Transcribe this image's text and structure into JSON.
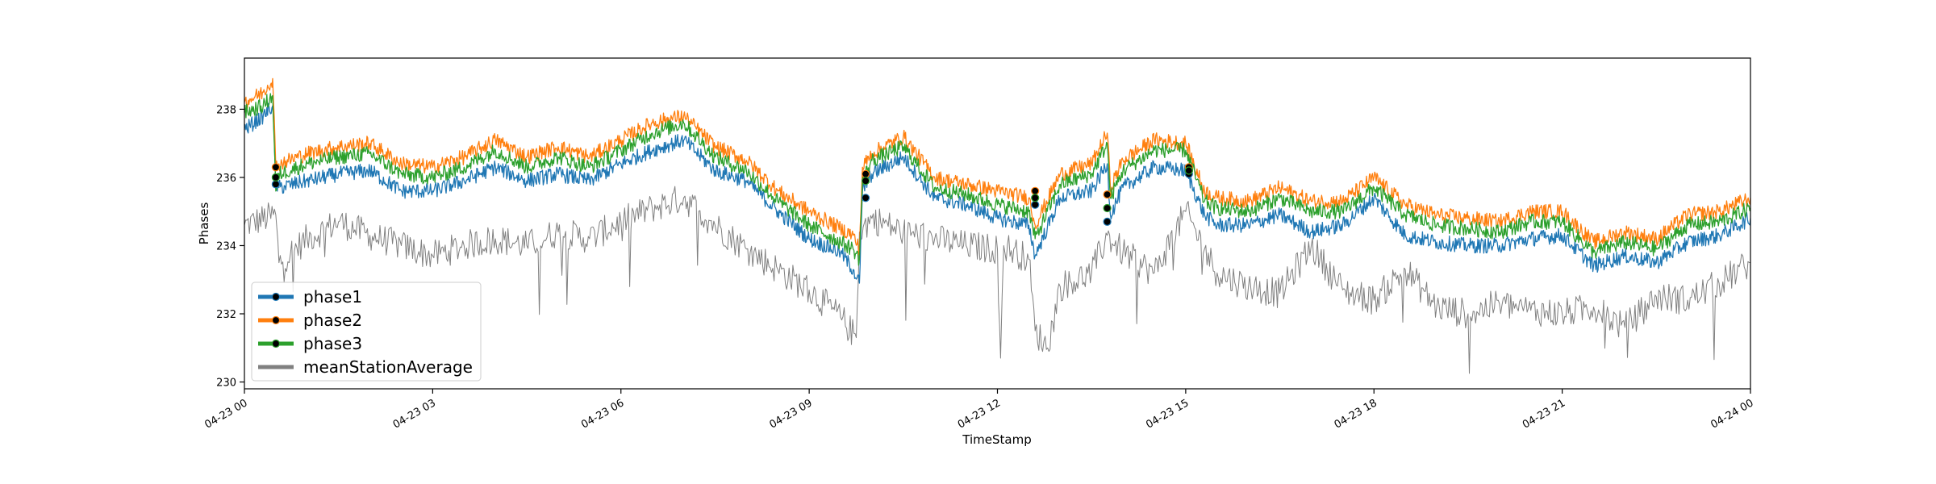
{
  "chart_data": {
    "type": "line",
    "title": "",
    "xlabel": "TimeStamp",
    "ylabel": "Phases",
    "xlim": [
      "2019-04-23 00:00",
      "2019-04-24 00:00"
    ],
    "ylim": [
      229.8,
      239.5
    ],
    "x_ticks": [
      {
        "t": 0,
        "label": "04-23 00"
      },
      {
        "t": 3,
        "label": "04-23 03"
      },
      {
        "t": 6,
        "label": "04-23 06"
      },
      {
        "t": 9,
        "label": "04-23 09"
      },
      {
        "t": 12,
        "label": "04-23 12"
      },
      {
        "t": 15,
        "label": "04-23 15"
      },
      {
        "t": 18,
        "label": "04-23 18"
      },
      {
        "t": 21,
        "label": "04-23 21"
      },
      {
        "t": 24,
        "label": "04-24 00"
      }
    ],
    "y_ticks": [
      230,
      232,
      234,
      236,
      238
    ],
    "grid": false,
    "legend": {
      "placement": "lower-left"
    },
    "series": [
      {
        "name": "phase1",
        "color": "#1f77b4",
        "x": [
          0,
          0.3,
          0.45,
          0.5,
          0.55,
          1,
          1.5,
          2,
          2.5,
          3,
          3.5,
          4,
          4.5,
          5,
          5.5,
          6,
          6.5,
          7,
          7.5,
          8,
          8.5,
          9,
          9.5,
          9.7,
          9.8,
          9.85,
          10,
          10.5,
          11,
          11.5,
          12,
          12.5,
          12.6,
          13,
          13.5,
          13.75,
          13.8,
          14,
          14.5,
          15,
          15.3,
          15.5,
          16,
          16.5,
          17,
          17.5,
          18,
          18.5,
          19,
          19.5,
          20,
          20.5,
          21,
          21.5,
          22,
          22.5,
          23,
          23.5,
          24
        ],
        "y": [
          237.4,
          237.8,
          238.1,
          235.8,
          235.7,
          235.9,
          236.1,
          236.2,
          235.6,
          235.6,
          235.9,
          236.3,
          235.9,
          236.1,
          235.9,
          236.4,
          236.8,
          237.1,
          236.2,
          235.9,
          235.0,
          234.2,
          233.8,
          233.3,
          232.9,
          235.6,
          236.1,
          236.6,
          235.4,
          235.2,
          234.8,
          234.6,
          233.7,
          235.4,
          235.6,
          236.4,
          234.9,
          235.7,
          236.3,
          236.2,
          234.9,
          234.6,
          234.6,
          234.9,
          234.4,
          234.6,
          235.4,
          234.3,
          234.1,
          234.0,
          234.0,
          234.2,
          234.3,
          233.4,
          233.7,
          233.5,
          234.1,
          234.3,
          234.8
        ]
      },
      {
        "name": "phase2",
        "color": "#ff7f0e",
        "x": [
          0,
          0.3,
          0.45,
          0.5,
          0.55,
          1,
          1.5,
          2,
          2.5,
          3,
          3.5,
          4,
          4.5,
          5,
          5.5,
          6,
          6.5,
          7,
          7.5,
          8,
          8.5,
          9,
          9.5,
          9.7,
          9.8,
          9.85,
          10,
          10.5,
          11,
          11.5,
          12,
          12.5,
          12.6,
          13,
          13.5,
          13.75,
          13.8,
          14,
          14.5,
          15,
          15.3,
          15.5,
          16,
          16.5,
          17,
          17.5,
          18,
          18.5,
          19,
          19.5,
          20,
          20.5,
          21,
          21.5,
          22,
          22.5,
          23,
          23.5,
          24
        ],
        "y": [
          238.2,
          238.5,
          238.9,
          236.3,
          236.4,
          236.7,
          236.9,
          237.0,
          236.4,
          236.3,
          236.6,
          237.1,
          236.6,
          236.9,
          236.6,
          237.1,
          237.6,
          237.8,
          236.9,
          236.5,
          235.6,
          235.0,
          234.5,
          234.3,
          233.9,
          236.3,
          236.7,
          237.2,
          236.0,
          235.8,
          235.6,
          235.4,
          234.6,
          236.1,
          236.4,
          237.3,
          235.7,
          236.5,
          237.1,
          237.0,
          235.6,
          235.4,
          235.3,
          235.7,
          235.3,
          235.3,
          236.0,
          235.2,
          234.9,
          234.8,
          234.7,
          235.0,
          235.0,
          234.1,
          234.4,
          234.2,
          234.9,
          235.0,
          235.4
        ]
      },
      {
        "name": "phase3",
        "color": "#2ca02c",
        "x": [
          0,
          0.3,
          0.45,
          0.5,
          0.55,
          1,
          1.5,
          2,
          2.5,
          3,
          3.5,
          4,
          4.5,
          5,
          5.5,
          6,
          6.5,
          7,
          7.5,
          8,
          8.5,
          9,
          9.5,
          9.7,
          9.8,
          9.85,
          10,
          10.5,
          11,
          11.5,
          12,
          12.5,
          12.6,
          13,
          13.5,
          13.75,
          13.8,
          14,
          14.5,
          15,
          15.3,
          15.5,
          16,
          16.5,
          17,
          17.5,
          18,
          18.5,
          19,
          19.5,
          20,
          20.5,
          21,
          21.5,
          22,
          22.5,
          23,
          23.5,
          24
        ],
        "y": [
          237.9,
          238.1,
          238.4,
          235.6,
          236.1,
          236.4,
          236.6,
          236.7,
          236.1,
          236.0,
          236.3,
          236.8,
          236.3,
          236.6,
          236.3,
          236.8,
          237.3,
          237.6,
          236.6,
          236.2,
          235.3,
          234.6,
          234.1,
          233.9,
          233.6,
          235.9,
          236.5,
          236.9,
          235.7,
          235.5,
          235.2,
          235.0,
          234.2,
          235.8,
          236.1,
          237.0,
          235.4,
          236.2,
          236.8,
          236.8,
          235.3,
          235.1,
          235.0,
          235.4,
          235.0,
          235.0,
          235.7,
          234.9,
          234.6,
          234.5,
          234.4,
          234.7,
          234.7,
          233.8,
          234.1,
          233.9,
          234.6,
          234.7,
          235.1
        ]
      },
      {
        "name": "meanStationAverage",
        "color": "#808080",
        "x": [
          0,
          0.5,
          0.55,
          1,
          1.5,
          2,
          2.5,
          3,
          3.5,
          4,
          4.5,
          5,
          5.5,
          6,
          6.5,
          7,
          7.5,
          8,
          8.5,
          9,
          9.5,
          9.75,
          9.8,
          10,
          10.5,
          11,
          11.5,
          12,
          12.05,
          12.1,
          12.5,
          12.6,
          12.8,
          13,
          13.5,
          13.75,
          14,
          14.5,
          15,
          15.3,
          15.5,
          16,
          16.5,
          17,
          17.5,
          18,
          18.5,
          19,
          19.5,
          20,
          20.5,
          21,
          21.5,
          22,
          22.5,
          23,
          23.5,
          24
        ],
        "y": [
          234.6,
          234.9,
          233.5,
          234.2,
          234.7,
          234.3,
          234.0,
          233.7,
          234.0,
          234.2,
          234.0,
          234.4,
          234.2,
          234.7,
          235.1,
          235.4,
          234.6,
          233.9,
          233.3,
          232.7,
          231.9,
          231.3,
          234.4,
          234.8,
          234.4,
          234.2,
          234.0,
          233.9,
          230.7,
          234.0,
          233.6,
          231.5,
          231.0,
          232.8,
          233.2,
          234.3,
          233.8,
          233.2,
          235.0,
          233.9,
          233.2,
          232.8,
          232.6,
          234.0,
          232.7,
          232.4,
          233.3,
          232.2,
          232.0,
          232.3,
          232.1,
          232.0,
          232.2,
          231.6,
          232.5,
          232.4,
          232.9,
          233.5
        ]
      }
    ],
    "markers": [
      {
        "series": "phase1",
        "points": [
          [
            0.5,
            235.8
          ],
          [
            9.9,
            235.4
          ],
          [
            12.6,
            235.2
          ],
          [
            13.75,
            234.7
          ],
          [
            15.05,
            236.1
          ]
        ]
      },
      {
        "series": "phase2",
        "points": [
          [
            0.5,
            236.3
          ],
          [
            9.9,
            236.1
          ],
          [
            12.6,
            235.6
          ],
          [
            13.75,
            235.5
          ],
          [
            15.05,
            236.3
          ]
        ]
      },
      {
        "series": "phase3",
        "points": [
          [
            0.5,
            236.0
          ],
          [
            9.9,
            235.9
          ],
          [
            12.6,
            235.4
          ],
          [
            13.75,
            235.1
          ],
          [
            15.05,
            236.2
          ]
        ]
      }
    ]
  }
}
